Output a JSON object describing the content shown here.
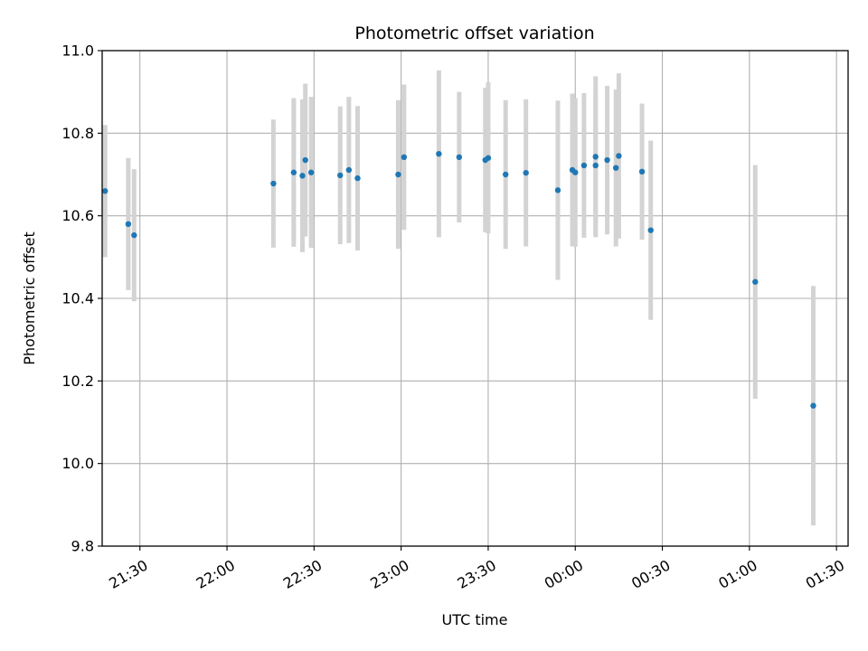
{
  "chart_data": {
    "type": "scatter",
    "title": "Photometric offset variation",
    "xlabel": "UTC time",
    "ylabel": "Photometric offset",
    "x_axis_type": "time",
    "xlim": [
      "21:17",
      "01:34"
    ],
    "ylim": [
      9.8,
      11.0
    ],
    "grid": true,
    "x_ticks": [
      "21:30",
      "22:00",
      "22:30",
      "23:00",
      "23:30",
      "00:00",
      "00:30",
      "01:00",
      "01:30"
    ],
    "y_ticks": [
      "9.8",
      "10.0",
      "10.2",
      "10.4",
      "10.6",
      "10.8",
      "11.0"
    ],
    "x_tick_rotation": 30,
    "colors": {
      "marker": "#1f77b4",
      "errorbar": "#d3d3d3",
      "grid": "#b0b0b0"
    },
    "points": [
      {
        "x": "21:18",
        "y": 10.66,
        "err": 0.16
      },
      {
        "x": "21:26",
        "y": 10.58,
        "err": 0.16
      },
      {
        "x": "21:28",
        "y": 10.553,
        "err": 0.16
      },
      {
        "x": "22:16",
        "y": 10.678,
        "err": 0.155
      },
      {
        "x": "22:23",
        "y": 10.705,
        "err": 0.18
      },
      {
        "x": "22:26",
        "y": 10.697,
        "err": 0.185
      },
      {
        "x": "22:27",
        "y": 10.735,
        "err": 0.185
      },
      {
        "x": "22:29",
        "y": 10.705,
        "err": 0.183
      },
      {
        "x": "22:39",
        "y": 10.698,
        "err": 0.167
      },
      {
        "x": "22:42",
        "y": 10.711,
        "err": 0.177
      },
      {
        "x": "22:45",
        "y": 10.691,
        "err": 0.175
      },
      {
        "x": "22:59",
        "y": 10.7,
        "err": 0.18
      },
      {
        "x": "23:01",
        "y": 10.742,
        "err": 0.176
      },
      {
        "x": "23:13",
        "y": 10.75,
        "err": 0.202
      },
      {
        "x": "23:20",
        "y": 10.742,
        "err": 0.158
      },
      {
        "x": "23:29",
        "y": 10.735,
        "err": 0.175
      },
      {
        "x": "23:30",
        "y": 10.74,
        "err": 0.183
      },
      {
        "x": "23:36",
        "y": 10.7,
        "err": 0.18
      },
      {
        "x": "23:43",
        "y": 10.704,
        "err": 0.178
      },
      {
        "x": "23:54",
        "y": 10.662,
        "err": 0.217
      },
      {
        "x": "23:59",
        "y": 10.711,
        "err": 0.185
      },
      {
        "x": "00:00",
        "y": 10.705,
        "err": 0.18
      },
      {
        "x": "00:03",
        "y": 10.722,
        "err": 0.175
      },
      {
        "x": "00:07",
        "y": 10.743,
        "err": 0.195
      },
      {
        "x": "00:07",
        "y": 10.722,
        "err": 0.17
      },
      {
        "x": "00:11",
        "y": 10.735,
        "err": 0.18
      },
      {
        "x": "00:14",
        "y": 10.716,
        "err": 0.19
      },
      {
        "x": "00:15",
        "y": 10.745,
        "err": 0.2
      },
      {
        "x": "00:23",
        "y": 10.707,
        "err": 0.165
      },
      {
        "x": "00:26",
        "y": 10.565,
        "err": 0.217
      },
      {
        "x": "01:02",
        "y": 10.44,
        "err": 0.283
      },
      {
        "x": "01:22",
        "y": 10.14,
        "err": 0.29
      }
    ]
  }
}
